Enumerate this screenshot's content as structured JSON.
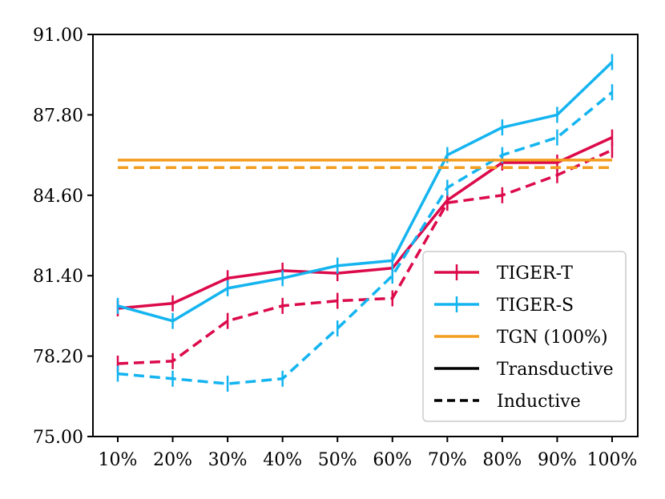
{
  "chart_data": {
    "type": "line",
    "title": "",
    "xlabel": "",
    "ylabel": "",
    "categories": [
      "10%",
      "20%",
      "30%",
      "40%",
      "50%",
      "60%",
      "70%",
      "80%",
      "90%",
      "100%"
    ],
    "ylim": [
      75.0,
      91.0
    ],
    "yticks": [
      "75.00",
      "78.20",
      "81.40",
      "84.60",
      "87.80",
      "91.00"
    ],
    "grid": false,
    "legend_position": "bottom-right",
    "series": [
      {
        "name": "TIGER-T Transductive",
        "group": "TIGER-T",
        "color": "#dc0a4b",
        "dash": "solid",
        "errorbars": true,
        "values": [
          80.1,
          80.3,
          81.3,
          81.6,
          81.5,
          81.7,
          84.4,
          85.9,
          85.9,
          86.9
        ]
      },
      {
        "name": "TIGER-T Inductive",
        "group": "TIGER-T",
        "color": "#dc0a4b",
        "dash": "dashed",
        "errorbars": true,
        "values": [
          77.9,
          78.0,
          79.6,
          80.2,
          80.4,
          80.5,
          84.3,
          84.6,
          85.4,
          86.4
        ]
      },
      {
        "name": "TIGER-S Transductive",
        "group": "TIGER-S",
        "color": "#14b4f0",
        "dash": "solid",
        "errorbars": true,
        "values": [
          80.2,
          79.6,
          80.9,
          81.3,
          81.8,
          82.0,
          86.2,
          87.3,
          87.8,
          89.9
        ]
      },
      {
        "name": "TIGER-S Inductive",
        "group": "TIGER-S",
        "color": "#14b4f0",
        "dash": "dashed",
        "errorbars": true,
        "values": [
          77.5,
          77.3,
          77.1,
          77.3,
          79.3,
          81.4,
          84.9,
          86.2,
          86.9,
          88.7
        ]
      },
      {
        "name": "TGN (100%) Transductive",
        "group": "TGN (100%)",
        "color": "#f39c1e",
        "dash": "solid",
        "errorbars": false,
        "values": [
          86.0,
          86.0,
          86.0,
          86.0,
          86.0,
          86.0,
          86.0,
          86.0,
          86.0,
          86.0
        ]
      },
      {
        "name": "TGN (100%) Inductive",
        "group": "TGN (100%)",
        "color": "#f39c1e",
        "dash": "dashed",
        "errorbars": false,
        "values": [
          85.7,
          85.7,
          85.7,
          85.7,
          85.7,
          85.7,
          85.7,
          85.7,
          85.7,
          85.7
        ]
      }
    ],
    "legend": [
      {
        "label": "TIGER-T",
        "color": "#dc0a4b",
        "dash": "solid",
        "marker": true
      },
      {
        "label": "TIGER-S",
        "color": "#14b4f0",
        "dash": "solid",
        "marker": true
      },
      {
        "label": "TGN (100%)",
        "color": "#f39c1e",
        "dash": "solid",
        "marker": false
      },
      {
        "label": "Transductive",
        "color": "#000000",
        "dash": "solid",
        "marker": false
      },
      {
        "label": "Inductive",
        "color": "#000000",
        "dash": "dashed",
        "marker": false
      }
    ]
  }
}
